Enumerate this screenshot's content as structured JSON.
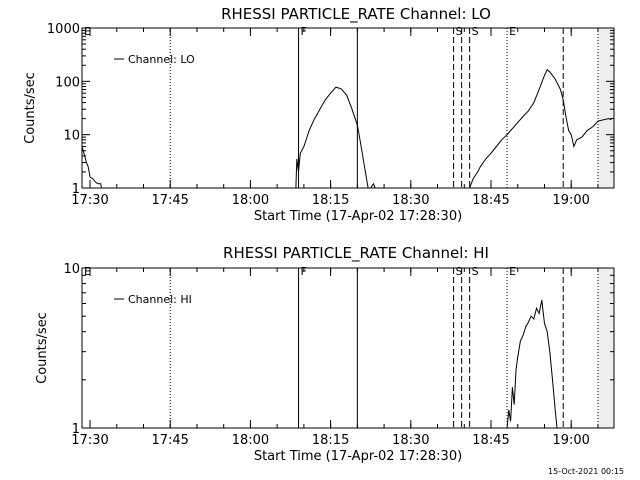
{
  "footer_stamp": "15-Oct-2021 00:15",
  "chart_data": [
    {
      "type": "line",
      "title": "RHESSI PARTICLE_RATE Channel: LO",
      "xlabel": "Start Time (17-Apr-02 17:28:30)",
      "ylabel": "Counts/sec",
      "yscale": "log",
      "ylim": [
        1,
        1000
      ],
      "yticks": [
        {
          "value": 1,
          "label": "1"
        },
        {
          "value": 10,
          "label": "10"
        },
        {
          "value": 100,
          "label": "100"
        },
        {
          "value": 1000,
          "label": "1000"
        }
      ],
      "xlim": [
        "17:28:30",
        "19:08:00"
      ],
      "xticks": [
        "17:30",
        "17:45",
        "18:00",
        "18:15",
        "18:30",
        "18:45",
        "19:00"
      ],
      "legend": {
        "entries": [
          "Channel: LO"
        ],
        "position": "top-left"
      },
      "markers": [
        {
          "time": "17:28:30",
          "label": "E",
          "style": "solid"
        },
        {
          "time": "17:45:00",
          "label": "",
          "style": "dotted"
        },
        {
          "time": "18:09:00",
          "label": "F",
          "style": "solid"
        },
        {
          "time": "18:20:00",
          "label": "",
          "style": "solid"
        },
        {
          "time": "18:38:00",
          "label": "S",
          "style": "dashed"
        },
        {
          "time": "18:39:30",
          "label": "",
          "style": "dashed"
        },
        {
          "time": "18:41:00",
          "label": "S",
          "style": "dashed"
        },
        {
          "time": "18:48:00",
          "label": "E",
          "style": "dotted"
        },
        {
          "time": "18:58:30",
          "label": "",
          "style": "dashed"
        },
        {
          "time": "19:05:00",
          "label": "",
          "style": "dotted"
        }
      ],
      "shaded_region": {
        "from": "19:05:00",
        "to": "19:08:00"
      },
      "series": [
        {
          "name": "Channel: LO",
          "segments": [
            [
              [
                "17:28:30",
                6
              ],
              [
                "17:29:00",
                4
              ],
              [
                "17:29:20",
                3
              ],
              [
                "17:29:40",
                2.5
              ],
              [
                "17:30:00",
                1.6
              ],
              [
                "17:30:30",
                1.5
              ],
              [
                "17:31:00",
                1.3
              ],
              [
                "17:31:30",
                1.2
              ],
              [
                "17:32:00",
                1.2
              ],
              [
                "17:32:10",
                1
              ]
            ],
            [
              [
                "18:08:30",
                1
              ],
              [
                "18:08:40",
                3.5
              ],
              [
                "18:09:00",
                2
              ],
              [
                "18:09:20",
                4.5
              ],
              [
                "18:10:00",
                6
              ],
              [
                "18:11:00",
                12
              ],
              [
                "18:12:00",
                20
              ],
              [
                "18:13:00",
                30
              ],
              [
                "18:14:00",
                45
              ],
              [
                "18:15:00",
                60
              ],
              [
                "18:16:00",
                78
              ],
              [
                "18:17:00",
                72
              ],
              [
                "18:18:00",
                55
              ],
              [
                "18:19:00",
                30
              ],
              [
                "18:20:00",
                15
              ],
              [
                "18:20:30",
                8
              ],
              [
                "18:21:00",
                4
              ],
              [
                "18:21:30",
                2
              ],
              [
                "18:22:00",
                1
              ]
            ],
            [
              [
                "18:22:30",
                1
              ],
              [
                "18:23:00",
                1.2
              ],
              [
                "18:23:20",
                1
              ]
            ],
            [
              [
                "18:41:00",
                1
              ],
              [
                "18:41:40",
                1.5
              ],
              [
                "18:42:30",
                2
              ],
              [
                "18:43:00",
                2.5
              ],
              [
                "18:44:00",
                3.5
              ],
              [
                "18:45:00",
                4.5
              ],
              [
                "18:46:00",
                6
              ],
              [
                "18:47:00",
                8
              ],
              [
                "18:48:00",
                10
              ],
              [
                "18:49:00",
                13
              ],
              [
                "18:50:00",
                17
              ],
              [
                "18:51:00",
                22
              ],
              [
                "18:52:00",
                28
              ],
              [
                "18:53:00",
                40
              ],
              [
                "18:54:00",
                70
              ],
              [
                "18:55:00",
                130
              ],
              [
                "18:55:30",
                165
              ],
              [
                "18:56:00",
                150
              ],
              [
                "18:57:00",
                110
              ],
              [
                "18:58:00",
                70
              ],
              [
                "18:58:30",
                45
              ],
              [
                "18:59:00",
                22
              ],
              [
                "18:59:30",
                12
              ],
              [
                "19:00:00",
                10
              ],
              [
                "19:00:30",
                6
              ],
              [
                "19:01:00",
                8
              ],
              [
                "19:02:00",
                9
              ],
              [
                "19:03:00",
                12
              ],
              [
                "19:04:00",
                14
              ],
              [
                "19:05:00",
                18
              ],
              [
                "19:06:00",
                19
              ],
              [
                "19:07:00",
                20
              ],
              [
                "19:07:30",
                19
              ]
            ]
          ]
        }
      ]
    },
    {
      "type": "line",
      "title": "RHESSI PARTICLE_RATE Channel: HI",
      "xlabel": "Start Time (17-Apr-02 17:28:30)",
      "ylabel": "Counts/sec",
      "yscale": "log",
      "ylim": [
        1,
        10
      ],
      "yticks": [
        {
          "value": 1,
          "label": "1"
        },
        {
          "value": 10,
          "label": "10"
        }
      ],
      "xlim": [
        "17:28:30",
        "19:08:00"
      ],
      "xticks": [
        "17:30",
        "17:45",
        "18:00",
        "18:15",
        "18:30",
        "18:45",
        "19:00"
      ],
      "legend": {
        "entries": [
          "Channel: HI"
        ],
        "position": "top-left"
      },
      "markers": [
        {
          "time": "17:28:30",
          "label": "E",
          "style": "solid"
        },
        {
          "time": "17:45:00",
          "label": "",
          "style": "dotted"
        },
        {
          "time": "18:09:00",
          "label": "F",
          "style": "solid"
        },
        {
          "time": "18:20:00",
          "label": "",
          "style": "solid"
        },
        {
          "time": "18:38:00",
          "label": "S",
          "style": "dashed"
        },
        {
          "time": "18:39:30",
          "label": "",
          "style": "dashed"
        },
        {
          "time": "18:41:00",
          "label": "S",
          "style": "dashed"
        },
        {
          "time": "18:48:00",
          "label": "E",
          "style": "dotted"
        },
        {
          "time": "18:58:30",
          "label": "",
          "style": "dashed"
        },
        {
          "time": "19:05:00",
          "label": "",
          "style": "dotted"
        }
      ],
      "shaded_region": {
        "from": "19:05:00",
        "to": "19:08:00"
      },
      "series": [
        {
          "name": "Channel: HI",
          "segments": [
            [
              [
                "18:48:00",
                1
              ],
              [
                "18:48:20",
                1.3
              ],
              [
                "18:48:40",
                1.1
              ],
              [
                "18:49:00",
                1.8
              ],
              [
                "18:49:20",
                1.4
              ],
              [
                "18:49:40",
                2.3
              ],
              [
                "18:50:00",
                2.8
              ],
              [
                "18:50:30",
                3.5
              ],
              [
                "18:51:00",
                3.8
              ],
              [
                "18:51:30",
                4.3
              ],
              [
                "18:52:00",
                4.6
              ],
              [
                "18:52:30",
                5.0
              ],
              [
                "18:53:00",
                4.8
              ],
              [
                "18:53:30",
                5.6
              ],
              [
                "18:54:00",
                5.2
              ],
              [
                "18:54:30",
                6.3
              ],
              [
                "18:55:00",
                4.5
              ],
              [
                "18:55:30",
                4.0
              ],
              [
                "18:56:00",
                3.0
              ],
              [
                "18:56:30",
                2.0
              ],
              [
                "18:57:00",
                1.3
              ],
              [
                "18:57:20",
                1
              ]
            ]
          ]
        }
      ]
    }
  ]
}
